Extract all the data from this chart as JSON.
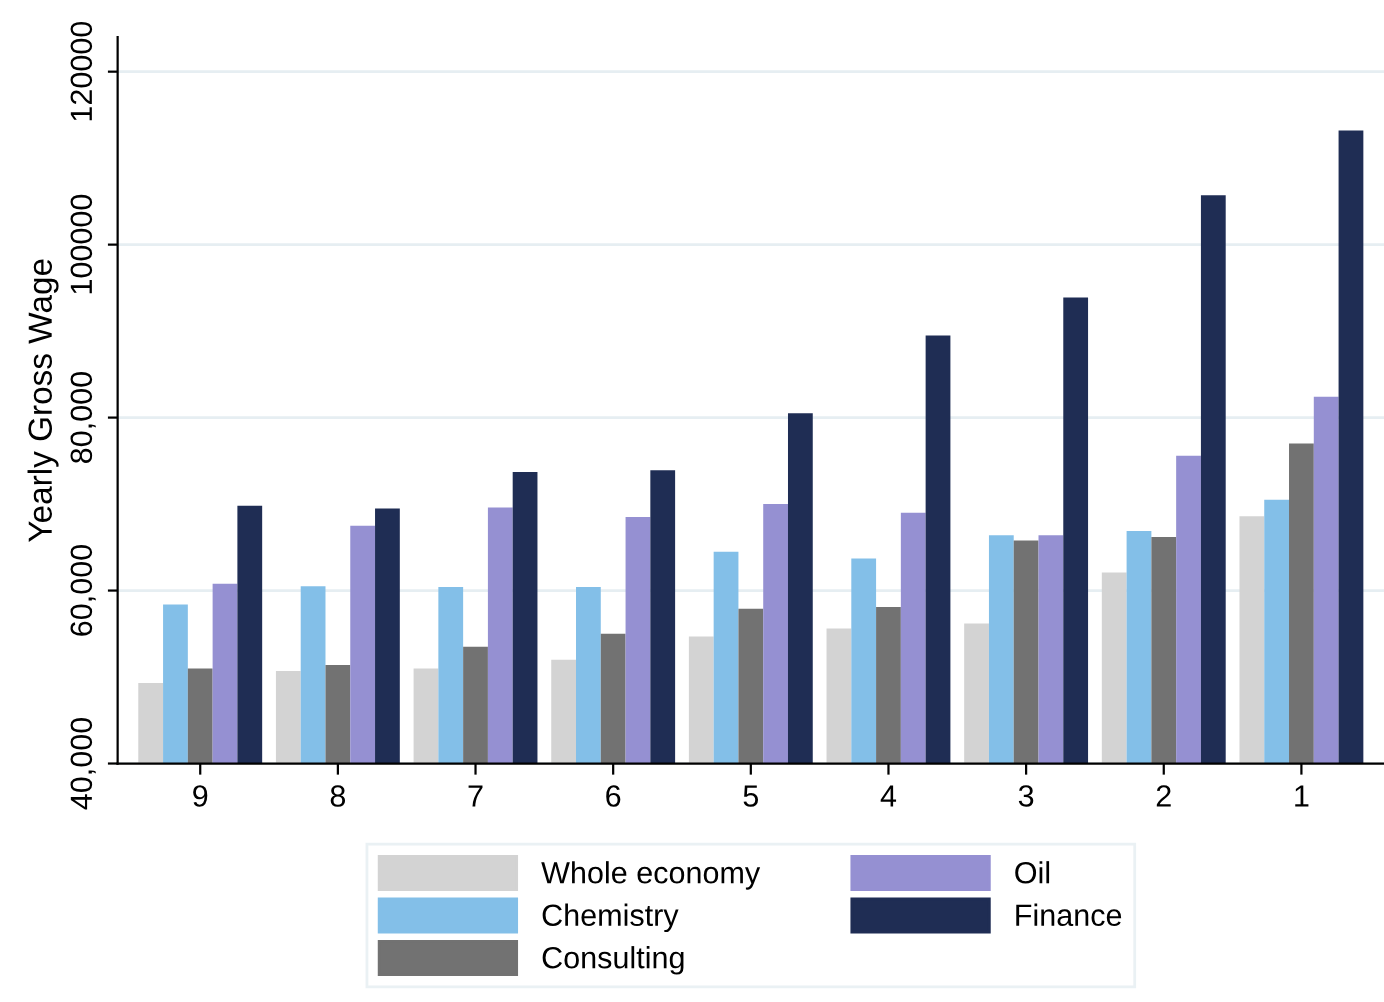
{
  "chart_data": {
    "type": "bar",
    "ylabel": "Yearly Gross Wage",
    "categories": [
      "9",
      "8",
      "7",
      "6",
      "5",
      "4",
      "3",
      "2",
      "1"
    ],
    "series": [
      {
        "name": "Whole economy",
        "color": "#d3d3d3",
        "values": [
          49300,
          50700,
          51000,
          52000,
          54700,
          55600,
          56200,
          62100,
          68600
        ]
      },
      {
        "name": "Chemistry",
        "color": "#83bfe8",
        "values": [
          58400,
          60500,
          60400,
          60400,
          64500,
          63700,
          66400,
          66900,
          70500
        ]
      },
      {
        "name": "Consulting",
        "color": "#727272",
        "values": [
          51000,
          51400,
          53500,
          55000,
          57900,
          58100,
          65800,
          66200,
          77000
        ]
      },
      {
        "name": "Oil",
        "color": "#9590d2",
        "values": [
          60800,
          67500,
          69600,
          68500,
          70000,
          69000,
          66400,
          75600,
          82400
        ]
      },
      {
        "name": "Finance",
        "color": "#1f2d54",
        "values": [
          69800,
          69500,
          73700,
          73900,
          80500,
          89500,
          93900,
          105700,
          113200
        ]
      }
    ],
    "ylim": [
      40000,
      124000
    ],
    "yticks": [
      {
        "value": 40000,
        "label": "40,000"
      },
      {
        "value": 60000,
        "label": "60,000"
      },
      {
        "value": 80000,
        "label": "80,000"
      },
      100000,
      120000
    ],
    "grid": "y",
    "legend": "bottom"
  }
}
